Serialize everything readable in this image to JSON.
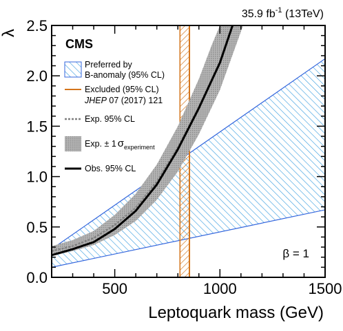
{
  "header": {
    "lumi": "35.9 fb",
    "lumi_exp": "-1",
    "energy": " (13TeV)"
  },
  "experiment": "CMS",
  "beta_label": "β = 1",
  "chart_data": {
    "type": "line",
    "xlabel": "Leptoquark mass (GeV)",
    "ylabel": "λ",
    "xlim": [
      200,
      1500
    ],
    "ylim": [
      0,
      2.5
    ],
    "xticks": [
      500,
      1000,
      1500
    ],
    "yticks": [
      0.0,
      0.5,
      1.0,
      1.5,
      2.0,
      2.5
    ],
    "grid": false,
    "legend_placement": "top-left",
    "legend": {
      "preferred_line1": "Preferred by",
      "preferred_line2": "B-anomaly (95% CL)",
      "excluded_line1": "Excluded (95% CL)",
      "excluded_journal": "JHEP",
      "excluded_ref": " 07 (2017) 121",
      "expected": "Exp. 95% CL",
      "band_text": "Exp. ± 1",
      "band_sigma": "σ",
      "band_sub": "experiment",
      "observed": "Obs. 95% CL"
    },
    "series": [
      {
        "key": "observed",
        "x": [
          200,
          300,
          400,
          500,
          600,
          700,
          800,
          900,
          1000,
          1060
        ],
        "y": [
          0.22,
          0.28,
          0.35,
          0.48,
          0.66,
          0.92,
          1.27,
          1.68,
          2.13,
          2.5
        ]
      },
      {
        "key": "expected",
        "x": [
          200,
          300,
          400,
          500,
          600,
          700,
          800,
          900,
          1000,
          1060
        ],
        "y": [
          0.26,
          0.31,
          0.39,
          0.52,
          0.69,
          0.95,
          1.29,
          1.69,
          2.14,
          2.5
        ]
      },
      {
        "key": "band_upper",
        "x": [
          200,
          300,
          400,
          500,
          600,
          700,
          800,
          900,
          960,
          1000,
          1110
        ],
        "y": [
          0.31,
          0.37,
          0.46,
          0.62,
          0.83,
          1.12,
          1.5,
          1.97,
          2.3,
          2.5,
          2.5
        ]
      },
      {
        "key": "band_lower",
        "x": [
          1110,
          1100,
          1000,
          900,
          800,
          700,
          600,
          500,
          400,
          300,
          200
        ],
        "y": [
          2.5,
          2.44,
          1.86,
          1.42,
          1.05,
          0.77,
          0.56,
          0.42,
          0.32,
          0.26,
          0.21
        ]
      }
    ],
    "preferred_region": {
      "x": [
        200,
        1500,
        1500,
        200
      ],
      "y": [
        0.28,
        2.17,
        0.67,
        0.1
      ]
    },
    "excluded_band": {
      "x_low": 810,
      "x_high": 855
    },
    "colors": {
      "observed": "#000000",
      "expected": "#7f7f7f",
      "band": "#a6a6a6",
      "preferred": "#3366dd",
      "excluded": "#d4741a"
    }
  }
}
